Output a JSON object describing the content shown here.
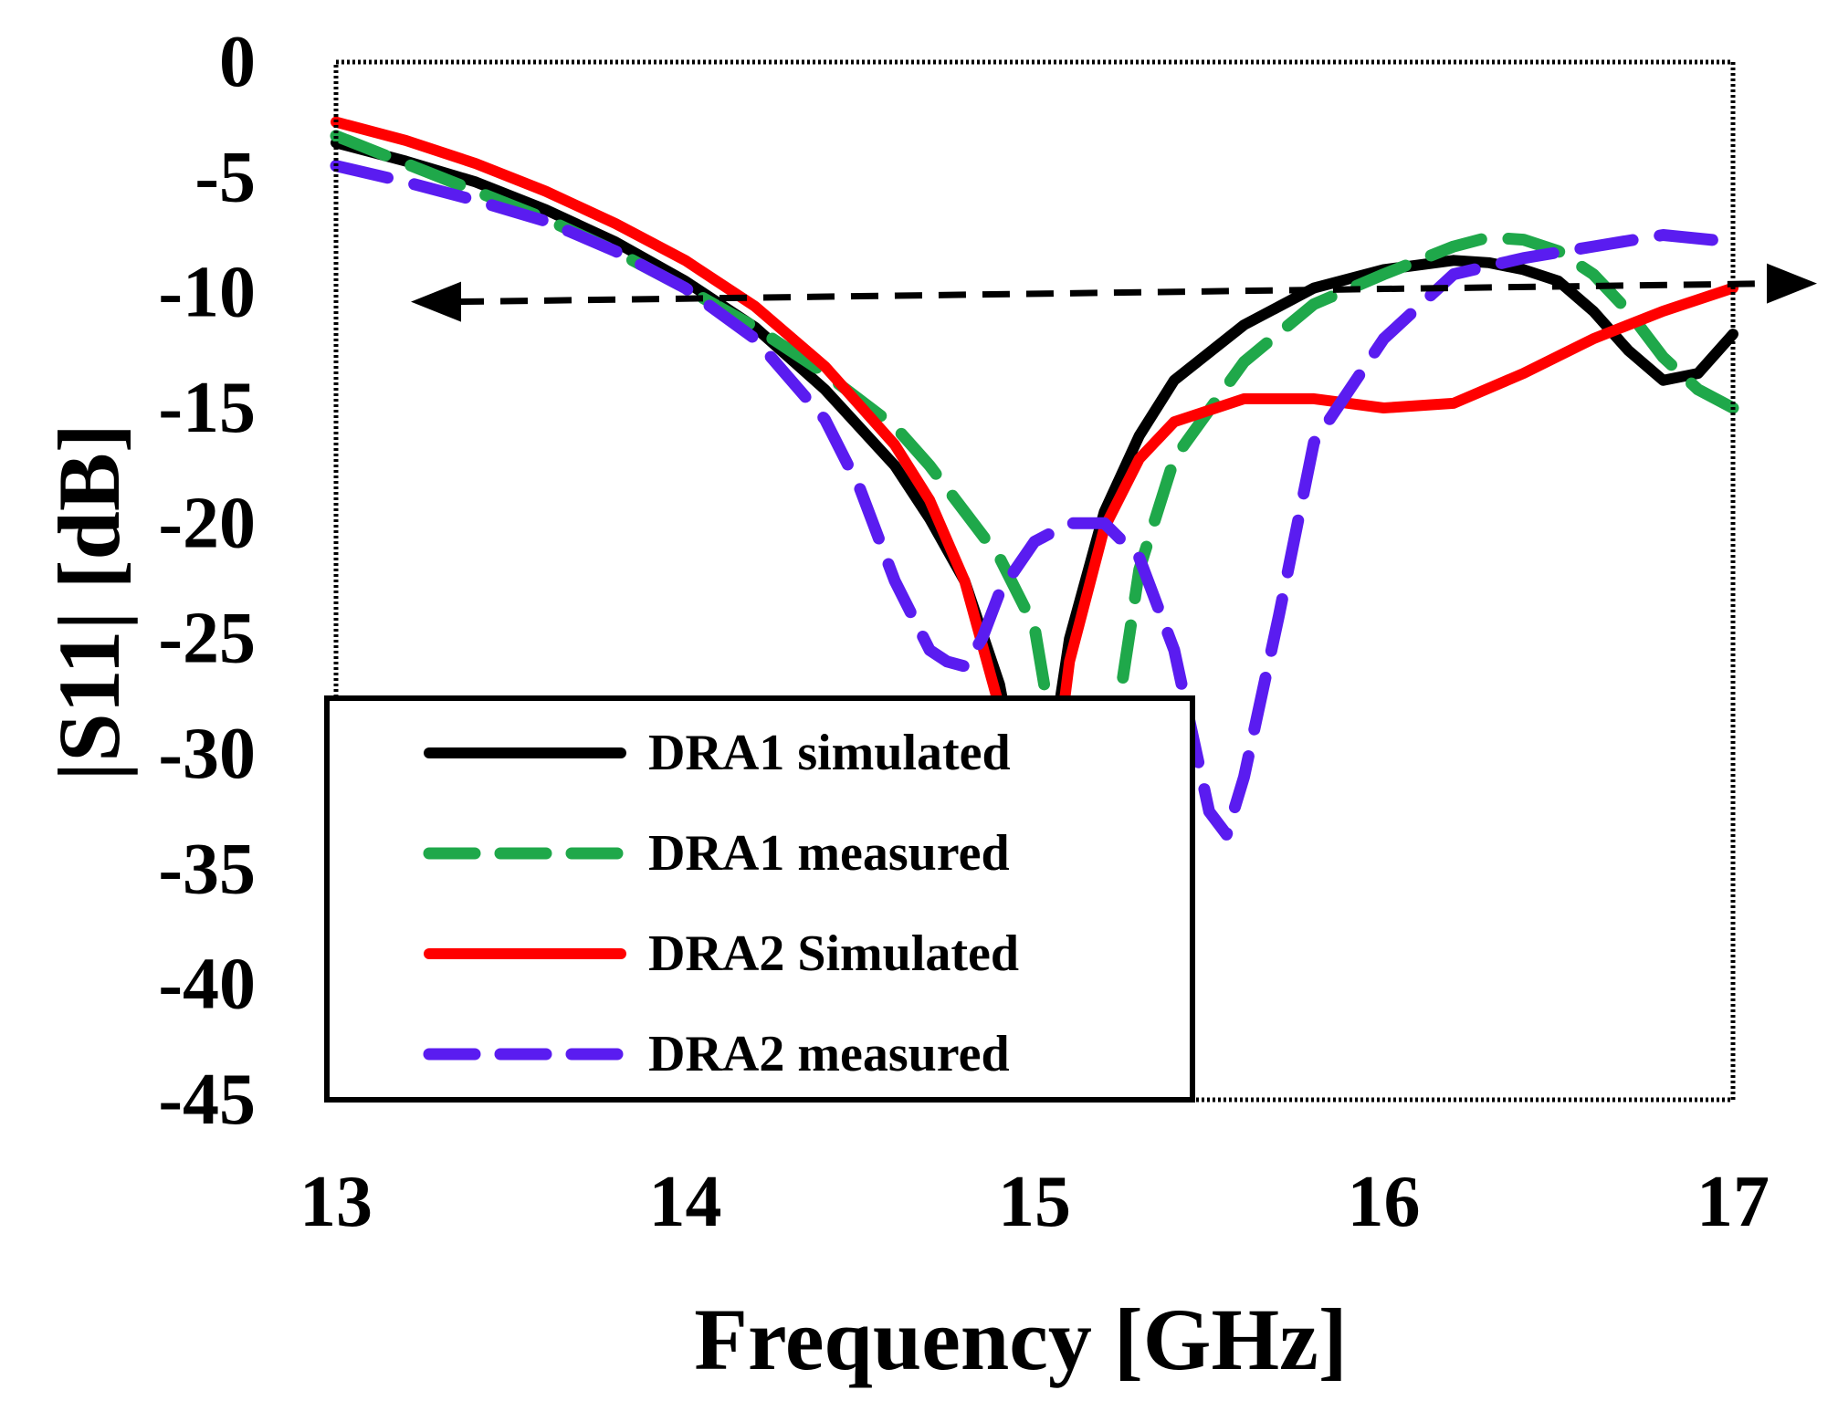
{
  "chart_data": {
    "type": "line",
    "title": "",
    "xlabel": "Frequency [GHz]",
    "ylabel": "|S11| [dB]",
    "xlim": [
      13,
      17
    ],
    "ylim": [
      -45,
      0
    ],
    "xticks": [
      13,
      14,
      15,
      16,
      17
    ],
    "yticks": [
      0,
      -5,
      -10,
      -15,
      -20,
      -25,
      -30,
      -35,
      -40,
      -45
    ],
    "xtick_labels": [
      "13",
      "14",
      "15",
      "16",
      "17"
    ],
    "ytick_labels": [
      "0",
      "-5",
      "-10",
      "-15",
      "-20",
      "-25",
      "-30",
      "-35",
      "-40",
      "-45"
    ],
    "grid": false,
    "legend_position": "bottom-left",
    "reference_line": {
      "y": -10,
      "style": "dashed",
      "arrows": "both",
      "color": "#000000"
    },
    "series": [
      {
        "name": "DRA1 simulated",
        "color": "#000000",
        "style": "solid",
        "x": [
          13.0,
          13.2,
          13.4,
          13.6,
          13.8,
          14.0,
          14.2,
          14.4,
          14.6,
          14.7,
          14.8,
          14.9,
          14.95,
          15.0,
          15.05,
          15.1,
          15.2,
          15.3,
          15.4,
          15.6,
          15.8,
          16.0,
          16.2,
          16.3,
          16.4,
          16.5,
          16.6,
          16.7,
          16.8,
          16.9,
          17.0
        ],
        "y": [
          -3.5,
          -4.3,
          -5.2,
          -6.4,
          -7.8,
          -9.5,
          -11.5,
          -14.2,
          -17.5,
          -19.8,
          -22.5,
          -27.0,
          -31.0,
          -34.0,
          -30.0,
          -25.0,
          -19.5,
          -16.2,
          -13.8,
          -11.4,
          -9.8,
          -9.0,
          -8.6,
          -8.7,
          -9.0,
          -9.5,
          -10.8,
          -12.5,
          -13.8,
          -13.5,
          -11.8
        ]
      },
      {
        "name": "DRA1 measured",
        "color": "#1fa84a",
        "style": "dashed",
        "x": [
          13.0,
          13.2,
          13.4,
          13.6,
          13.8,
          14.0,
          14.2,
          14.4,
          14.6,
          14.7,
          14.8,
          14.9,
          15.0,
          15.05,
          15.1,
          15.15,
          15.2,
          15.3,
          15.4,
          15.6,
          15.8,
          16.0,
          16.2,
          16.3,
          16.4,
          16.5,
          16.6,
          16.7,
          16.8,
          16.9,
          17.0
        ],
        "y": [
          -3.2,
          -4.4,
          -5.6,
          -6.8,
          -8.2,
          -9.8,
          -11.5,
          -13.5,
          -15.8,
          -17.5,
          -19.5,
          -21.5,
          -24.5,
          -29.0,
          -36.0,
          -39.5,
          -32.0,
          -22.0,
          -17.2,
          -13.0,
          -10.5,
          -9.2,
          -8.0,
          -7.6,
          -7.7,
          -8.2,
          -9.2,
          -10.8,
          -12.8,
          -14.2,
          -15.0
        ]
      },
      {
        "name": "DRA2 Simulated",
        "color": "#ff0000",
        "style": "solid",
        "x": [
          13.0,
          13.2,
          13.4,
          13.6,
          13.8,
          14.0,
          14.2,
          14.4,
          14.6,
          14.7,
          14.8,
          14.9,
          14.95,
          15.0,
          15.05,
          15.1,
          15.2,
          15.3,
          15.4,
          15.6,
          15.8,
          16.0,
          16.2,
          16.4,
          16.6,
          16.8,
          17.0
        ],
        "y": [
          -2.6,
          -3.4,
          -4.4,
          -5.6,
          -7.0,
          -8.6,
          -10.6,
          -13.2,
          -16.6,
          -19.0,
          -22.5,
          -28.0,
          -33.0,
          -36.0,
          -32.0,
          -26.0,
          -20.2,
          -17.2,
          -15.6,
          -14.6,
          -14.6,
          -15.0,
          -14.8,
          -13.5,
          -12.0,
          -10.8,
          -9.8
        ]
      },
      {
        "name": "DRA2 measured",
        "color": "#5a1cf0",
        "style": "dashed",
        "x": [
          13.0,
          13.2,
          13.4,
          13.6,
          13.8,
          14.0,
          14.2,
          14.4,
          14.5,
          14.6,
          14.7,
          14.75,
          14.8,
          14.85,
          14.9,
          15.0,
          15.1,
          15.2,
          15.3,
          15.4,
          15.45,
          15.5,
          15.55,
          15.6,
          15.7,
          15.8,
          16.0,
          16.2,
          16.4,
          16.6,
          16.8,
          17.0
        ],
        "y": [
          -4.5,
          -5.2,
          -6.0,
          -6.9,
          -8.2,
          -9.8,
          -12.0,
          -15.5,
          -18.5,
          -22.5,
          -25.5,
          -26.0,
          -26.2,
          -25.0,
          -23.0,
          -20.8,
          -20.0,
          -20.0,
          -21.5,
          -25.5,
          -29.0,
          -32.5,
          -33.5,
          -31.0,
          -24.0,
          -16.5,
          -12.0,
          -9.2,
          -8.5,
          -8.0,
          -7.5,
          -7.8
        ]
      }
    ]
  }
}
